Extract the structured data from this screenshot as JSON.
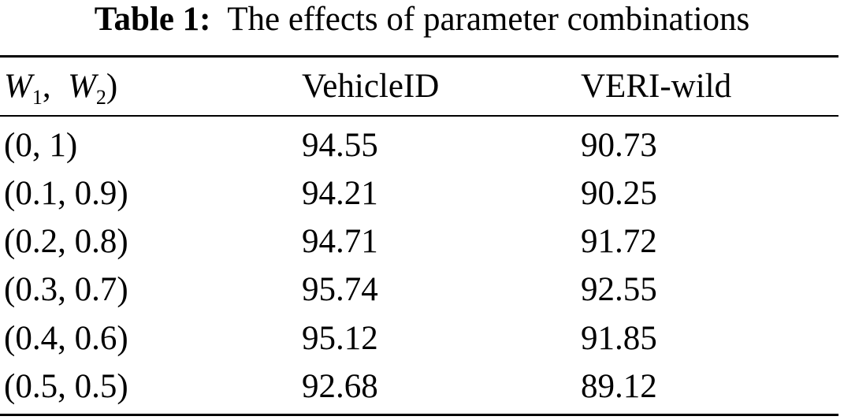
{
  "caption": {
    "label": "Table 1:",
    "text": "The effects of parameter combinations"
  },
  "header": {
    "col1": {
      "var1": "W",
      "sub1": "1",
      "sep": ",",
      "var2": "W",
      "sub2": "2",
      "close": ")"
    },
    "col2": "VehicleID",
    "col3": "VERI-wild"
  },
  "rows": [
    {
      "params": "(0, 1)",
      "vehicleid": "94.55",
      "veriwild": "90.73"
    },
    {
      "params": "(0.1, 0.9)",
      "vehicleid": "94.21",
      "veriwild": "90.25"
    },
    {
      "params": "(0.2, 0.8)",
      "vehicleid": "94.71",
      "veriwild": "91.72"
    },
    {
      "params": "(0.3, 0.7)",
      "vehicleid": "95.74",
      "veriwild": "92.55"
    },
    {
      "params": "(0.4, 0.6)",
      "vehicleid": "95.12",
      "veriwild": "91.85"
    },
    {
      "params": "(0.5, 0.5)",
      "vehicleid": "92.68",
      "veriwild": "89.12"
    }
  ]
}
